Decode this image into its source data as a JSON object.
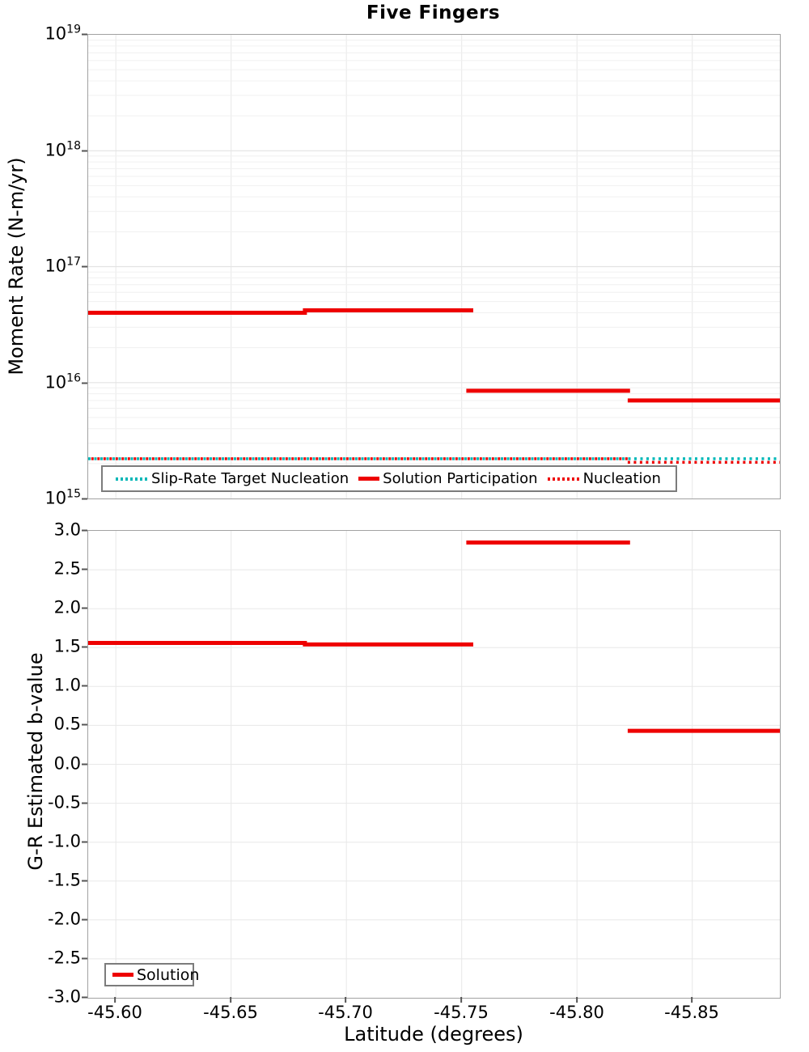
{
  "title": "Five Fingers",
  "colors": {
    "solution_red": "#ee0000",
    "slip_rate_teal": "#00b7b7",
    "grid_minor": "#f0f0f0",
    "grid_major": "#e3e3e3",
    "plot_border": "#a2a2a2"
  },
  "top_chart": {
    "ylabel": "Moment Rate (N-m/yr)",
    "ytick_labels": [
      {
        "base": "10",
        "exp": "19"
      },
      {
        "base": "10",
        "exp": "18"
      },
      {
        "base": "10",
        "exp": "17"
      },
      {
        "base": "10",
        "exp": "16"
      },
      {
        "base": "10",
        "exp": "15"
      }
    ],
    "legend": [
      {
        "label": "Slip-Rate Target Nucleation"
      },
      {
        "label": "Solution Participation"
      },
      {
        "label": "Nucleation"
      }
    ]
  },
  "bottom_chart": {
    "ylabel": "G-R Estimated b-value",
    "ytick_labels": [
      "3.0",
      "2.5",
      "2.0",
      "1.5",
      "1.0",
      "0.5",
      "0.0",
      "-0.5",
      "-1.0",
      "-1.5",
      "-2.0",
      "-2.5",
      "-3.0"
    ],
    "legend": [
      {
        "label": "Solution"
      }
    ]
  },
  "x_axis": {
    "label": "Latitude (degrees)",
    "tick_labels": [
      "-45.60",
      "-45.65",
      "-45.70",
      "-45.75",
      "-45.80",
      "-45.85"
    ],
    "ticks": [
      -45.6,
      -45.65,
      -45.7,
      -45.75,
      -45.8,
      -45.85
    ]
  },
  "chart_data": [
    {
      "type": "line",
      "title": "Five Fingers",
      "subtitle": "fault-section step plot, shared x-axis",
      "xlabel": "Latitude (degrees)",
      "ylabel": "Moment Rate (N-m/yr)",
      "yscale": "log",
      "ylim": [
        1000000000000000.0,
        1e+19
      ],
      "xlim": [
        -45.588,
        -45.888
      ],
      "x_reversed": true,
      "grid": true,
      "legend_position": "lower left",
      "series": [
        {
          "name": "Slip-Rate Target Nucleation",
          "color": "#00b7b7",
          "style": "dotted",
          "segments": [
            {
              "x0": -45.588,
              "x1": -45.888,
              "y": 2200000000000000.0
            }
          ]
        },
        {
          "name": "Solution Participation",
          "color": "#ee0000",
          "style": "solid",
          "segments": [
            {
              "x0": -45.588,
              "x1": -45.682,
              "y": 4e+16
            },
            {
              "x0": -45.682,
              "x1": -45.755,
              "y": 4.2e+16
            },
            {
              "x0": -45.752,
              "x1": -45.823,
              "y": 8500000000000000.0
            },
            {
              "x0": -45.822,
              "x1": -45.888,
              "y": 7000000000000000.0
            }
          ]
        },
        {
          "name": "Nucleation",
          "color": "#ee0000",
          "style": "dotted",
          "dashoffset": 3.7,
          "segments": [
            {
              "x0": -45.588,
              "x1": -45.822,
              "y": 2200000000000000.0
            },
            {
              "x0": -45.822,
              "x1": -45.888,
              "y": 2050000000000000.0
            }
          ]
        }
      ]
    },
    {
      "type": "line",
      "xlabel": "Latitude (degrees)",
      "ylabel": "G-R Estimated b-value",
      "yscale": "linear",
      "ylim": [
        -3.0,
        3.0
      ],
      "xlim": [
        -45.588,
        -45.888
      ],
      "x_reversed": true,
      "grid": true,
      "legend_position": "lower left",
      "series": [
        {
          "name": "Solution",
          "color": "#ee0000",
          "style": "solid",
          "segments": [
            {
              "x0": -45.588,
              "x1": -45.682,
              "y": 1.56
            },
            {
              "x0": -45.682,
              "x1": -45.755,
              "y": 1.54
            },
            {
              "x0": -45.752,
              "x1": -45.823,
              "y": 2.85
            },
            {
              "x0": -45.822,
              "x1": -45.888,
              "y": 0.43
            }
          ]
        }
      ]
    }
  ]
}
